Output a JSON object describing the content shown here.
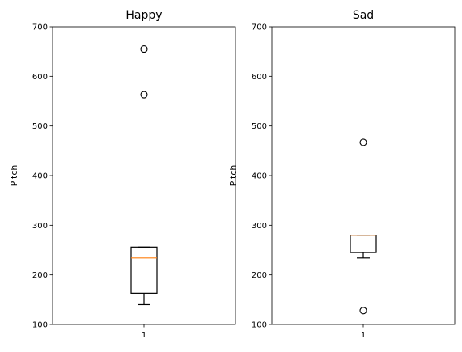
{
  "chart_data": [
    {
      "type": "box",
      "title": "Happy",
      "xlabel": "",
      "ylabel": "Pitch",
      "ylim": [
        100,
        700
      ],
      "yticks": [
        "100",
        "200",
        "300",
        "400",
        "500",
        "600",
        "700"
      ],
      "categories": [
        "1"
      ],
      "box": {
        "whisker_low": 140,
        "q1": 163,
        "median": 234,
        "q3": 256,
        "whisker_high": 256
      },
      "outliers": [
        563,
        655
      ],
      "grid": false,
      "colors": {
        "median": "#ff7f0e",
        "box": "#000000"
      }
    },
    {
      "type": "box",
      "title": "Sad",
      "xlabel": "",
      "ylabel": "Pitch",
      "ylim": [
        100,
        700
      ],
      "yticks": [
        "100",
        "200",
        "300",
        "400",
        "500",
        "600",
        "700"
      ],
      "categories": [
        "1"
      ],
      "box": {
        "whisker_low": 234,
        "q1": 245,
        "median": 280,
        "q3": 280,
        "whisker_high": 280
      },
      "outliers": [
        128,
        467
      ],
      "grid": false,
      "colors": {
        "median": "#ff7f0e",
        "box": "#000000"
      }
    }
  ]
}
